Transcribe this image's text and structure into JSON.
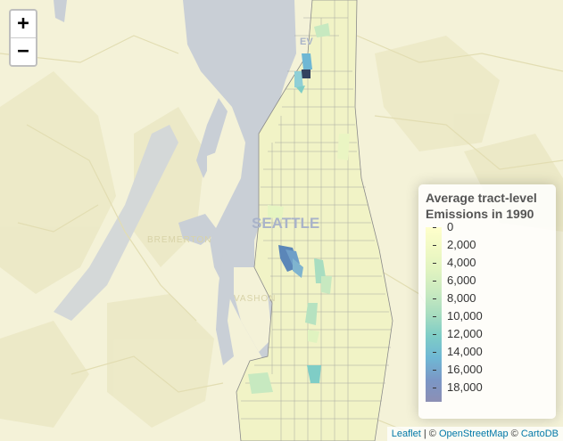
{
  "map": {
    "labels": {
      "seattle": "SEATTLE",
      "everett": "EV",
      "bremerton": "BREMERTON",
      "vashon": "VASHON"
    }
  },
  "zoom": {
    "in_label": "+",
    "out_label": "−"
  },
  "legend": {
    "title": "Average tract-level Emissions in 1990",
    "ticks": [
      "0",
      "2,000",
      "4,000",
      "6,000",
      "8,000",
      "10,000",
      "12,000",
      "14,000",
      "16,000",
      "18,000"
    ],
    "range": [
      0,
      19000
    ],
    "colors": [
      "#ffffcc",
      "#c7e9c0",
      "#7fcdc6",
      "#6fb7d4",
      "#8c8fb5"
    ]
  },
  "attribution": {
    "leaflet": "Leaflet",
    "sep1": " | © ",
    "osm": "OpenStreetMap",
    "sep2": " © ",
    "carto": "CartoDB"
  }
}
